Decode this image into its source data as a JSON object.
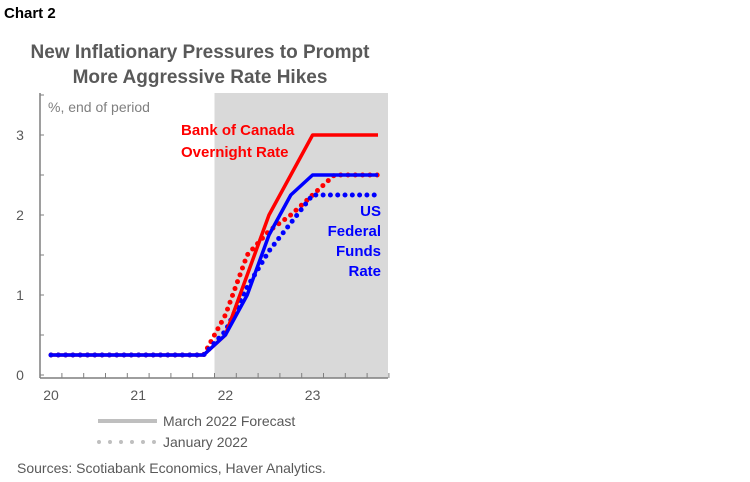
{
  "chart_label": "Chart 2",
  "chart_data": {
    "type": "line",
    "title": [
      "New Inflationary Pressures to Prompt",
      "More Aggressive Rate Hikes"
    ],
    "ylabel": "%, end of period",
    "ylim": [
      0,
      3.5
    ],
    "yticks": [
      "0",
      "1",
      "2",
      "3"
    ],
    "xticks": [
      "20",
      "21",
      "22",
      "23"
    ],
    "x_unit": "quarter index from 2020Q1",
    "forecast_shading_start": "2021Q4/2022Q1",
    "series": [
      {
        "name": "Bank of Canada Overnight Rate",
        "vintage": "March 2022 Forecast",
        "color": "#ff0000",
        "style": "solid",
        "values": [
          0.25,
          0.25,
          0.25,
          0.25,
          0.25,
          0.25,
          0.25,
          0.25,
          0.5,
          1.25,
          2.0,
          2.5,
          3.0,
          3.0,
          3.0,
          3.0
        ]
      },
      {
        "name": "US Federal Funds Rate",
        "vintage": "March 2022 Forecast",
        "color": "#0000ff",
        "style": "solid",
        "values": [
          0.25,
          0.25,
          0.25,
          0.25,
          0.25,
          0.25,
          0.25,
          0.25,
          0.5,
          1.0,
          1.75,
          2.25,
          2.5,
          2.5,
          2.5,
          2.5
        ]
      },
      {
        "name": "Bank of Canada Overnight Rate",
        "vintage": "January 2022",
        "color": "#ff0000",
        "style": "dotted",
        "values": [
          0.25,
          0.25,
          0.25,
          0.25,
          0.25,
          0.25,
          0.25,
          0.25,
          0.75,
          1.5,
          1.8,
          2.0,
          2.25,
          2.5,
          2.5,
          2.5
        ]
      },
      {
        "name": "US Federal Funds Rate",
        "vintage": "January 2022",
        "color": "#0000ff",
        "style": "dotted",
        "values": [
          0.25,
          0.25,
          0.25,
          0.25,
          0.25,
          0.25,
          0.25,
          0.25,
          0.55,
          1.1,
          1.55,
          1.9,
          2.25,
          2.25,
          2.25,
          2.25
        ]
      }
    ],
    "annotations": {
      "boc": [
        "Bank of Canada",
        "Overnight Rate"
      ],
      "fed": [
        "US",
        "Federal",
        "Funds",
        "Rate"
      ]
    },
    "legend": [
      "March 2022 Forecast",
      "January 2022"
    ],
    "legend_placement": "bottom",
    "source": "Sources: Scotiabank Economics, Haver Analytics."
  }
}
